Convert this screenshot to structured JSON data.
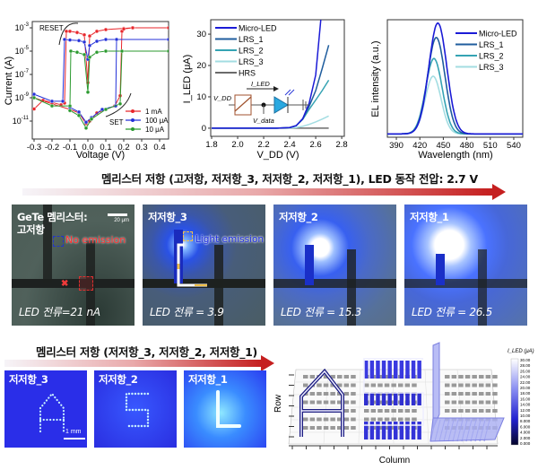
{
  "chart_data": [
    {
      "type": "line",
      "xlabel": "Voltage (V)",
      "ylabel": "Current (A)",
      "xlim": [
        -0.31,
        0.45
      ],
      "ylim_log10": [
        -12.54,
        -2.46
      ],
      "log_y": true,
      "xticks": [
        -0.3,
        -0.2,
        -0.1,
        0.0,
        0.1,
        0.2,
        0.3,
        0.4
      ],
      "xtick_labels": [
        "-0.3",
        "-0.2",
        "-0.1",
        "0.0",
        "0.1",
        "0.2",
        "0.3",
        "0.4"
      ],
      "yticks_exp": [
        -3,
        -5,
        -7,
        -9,
        -11
      ],
      "legend_position": "bottom-right",
      "annotations": [
        "RESET",
        "SET"
      ],
      "series": [
        {
          "name": "1 mA",
          "color": "#e8262b",
          "points": [
            [
              -0.3,
              1.1e-10
            ],
            [
              -0.25,
              6e-10
            ],
            [
              -0.2,
              4e-10
            ],
            [
              -0.15,
              2.5e-10
            ],
            [
              -0.13,
              3.5e-10
            ],
            [
              -0.12,
              0.0005
            ],
            [
              -0.1,
              0.0005
            ],
            [
              -0.06,
              0.0004
            ],
            [
              -0.02,
              0.00025
            ],
            [
              0,
              2e-08
            ],
            [
              0.01,
              0.0002
            ],
            [
              0.05,
              0.0005
            ],
            [
              0.1,
              0.0007
            ],
            [
              0.2,
              0.0009
            ],
            [
              0.25,
              0.001
            ],
            [
              0.45,
              0.001
            ],
            null,
            [
              -0.3,
              1e-09
            ],
            [
              -0.2,
              3e-10
            ],
            [
              -0.1,
              1e-10
            ],
            [
              -0.05,
              5e-11
            ],
            [
              -0.01,
              6e-12
            ],
            [
              0.01,
              1e-11
            ],
            [
              0.05,
              5e-11
            ],
            [
              0.1,
              1e-10
            ],
            [
              0.15,
              2e-10
            ],
            [
              0.18,
              1.5e-09
            ],
            [
              0.19,
              0.0005
            ],
            [
              0.2,
              0.0008
            ],
            [
              0.25,
              0.001
            ]
          ]
        },
        {
          "name": "100 μA",
          "color": "#2431d8",
          "points": [
            [
              -0.3,
              2e-09
            ],
            [
              -0.2,
              5e-10
            ],
            [
              -0.14,
              5e-10
            ],
            [
              -0.13,
              0.0001
            ],
            [
              -0.1,
              9e-05
            ],
            [
              -0.05,
              8e-05
            ],
            [
              -0.02,
              6e-05
            ],
            [
              0,
              2e-06
            ],
            [
              0.01,
              3e-05
            ],
            [
              0.05,
              7e-05
            ],
            [
              0.1,
              0.0001
            ],
            [
              0.45,
              0.0001
            ],
            null,
            [
              -0.1,
              1.5e-10
            ],
            [
              -0.05,
              6e-11
            ],
            [
              -0.01,
              8e-12
            ],
            [
              0.02,
              2e-11
            ],
            [
              0.08,
              1e-10
            ],
            [
              0.155,
              2e-10
            ],
            [
              0.16,
              0.0001
            ]
          ]
        },
        {
          "name": "10 μA",
          "color": "#2b9a2f",
          "points": [
            [
              -0.3,
              1e-09
            ],
            [
              -0.2,
              2e-10
            ],
            [
              -0.1,
              2e-10
            ],
            [
              -0.095,
              1e-05
            ],
            [
              -0.06,
              8e-06
            ],
            [
              -0.02,
              5e-06
            ],
            [
              0,
              3e-09
            ],
            [
              0.01,
              3e-06
            ],
            [
              0.05,
              8e-06
            ],
            [
              0.1,
              1e-05
            ],
            [
              0.45,
              1e-05
            ],
            null,
            [
              -0.1,
              8e-11
            ],
            [
              -0.05,
              3e-11
            ],
            [
              -0.01,
              2.5e-12
            ],
            [
              0.02,
              1.5e-11
            ],
            [
              0.1,
              1e-10
            ],
            [
              0.18,
              3e-10
            ],
            [
              0.19,
              1e-05
            ]
          ]
        }
      ]
    },
    {
      "type": "line",
      "xlabel": "V_DD (V)",
      "ylabel": "I_LED (μA)",
      "xlim": [
        1.793,
        2.82
      ],
      "ylim": [
        -2.6,
        34.6
      ],
      "xticks": [
        1.8,
        2.0,
        2.2,
        2.4,
        2.6,
        2.8
      ],
      "xtick_labels": [
        "1.8",
        "2.0",
        "2.2",
        "2.4",
        "2.6",
        "2.8"
      ],
      "yticks": [
        0,
        10,
        20,
        30
      ],
      "ytick_labels": [
        "0",
        "10",
        "20",
        "30"
      ],
      "legend_position": "top-left",
      "inset": {
        "current_label": "I_LED",
        "vdd_label": "V_DD",
        "vdata_label": "V_data"
      },
      "series": [
        {
          "name": "Micro-LED",
          "color": "#1b1bd6",
          "points": [
            [
              1.8,
              0
            ],
            [
              2.3,
              0
            ],
            [
              2.4,
              0.2
            ],
            [
              2.45,
              0.8
            ],
            [
              2.5,
              3
            ],
            [
              2.55,
              8
            ],
            [
              2.6,
              17
            ],
            [
              2.64,
              35
            ]
          ]
        },
        {
          "name": "LRS_1",
          "color": "#1f5d9e",
          "points": [
            [
              1.8,
              0
            ],
            [
              2.3,
              0
            ],
            [
              2.4,
              0.2
            ],
            [
              2.45,
              0.8
            ],
            [
              2.5,
              3
            ],
            [
              2.55,
              7
            ],
            [
              2.6,
              12
            ],
            [
              2.65,
              19
            ],
            [
              2.7,
              26.5
            ]
          ]
        },
        {
          "name": "LRS_2",
          "color": "#35a3b3",
          "points": [
            [
              1.8,
              0
            ],
            [
              2.3,
              0
            ],
            [
              2.4,
              0.2
            ],
            [
              2.45,
              0.8
            ],
            [
              2.5,
              2.8
            ],
            [
              2.55,
              6
            ],
            [
              2.6,
              9
            ],
            [
              2.65,
              12
            ],
            [
              2.7,
              15.3
            ]
          ]
        },
        {
          "name": "LRS_3",
          "color": "#a3dde2",
          "points": [
            [
              1.8,
              0
            ],
            [
              2.3,
              0
            ],
            [
              2.4,
              0.05
            ],
            [
              2.45,
              0.2
            ],
            [
              2.5,
              0.6
            ],
            [
              2.55,
              1.2
            ],
            [
              2.6,
              2
            ],
            [
              2.65,
              2.9
            ],
            [
              2.7,
              3.9
            ]
          ]
        },
        {
          "name": "HRS",
          "color": "#6b6b6b",
          "points": [
            [
              1.8,
              0
            ],
            [
              2.7,
              0
            ]
          ]
        }
      ]
    },
    {
      "type": "line",
      "xlabel": "Wavelength (nm)",
      "ylabel": "EL intensity (a.u.)",
      "xlim": [
        378.5,
        551.5
      ],
      "ylim": [
        -0.03,
        1.03
      ],
      "xticks": [
        390,
        420,
        450,
        480,
        510,
        540
      ],
      "xtick_labels": [
        "390",
        "420",
        "450",
        "480",
        "510",
        "540"
      ],
      "legend_position": "top-right",
      "series": [
        {
          "name": "Micro-LED",
          "color": "#1b1bd6",
          "peak_nm": 443,
          "relative_peak": 1.0,
          "fwhm_nm": 27
        },
        {
          "name": "LRS_1",
          "color": "#1f5d9e",
          "peak_nm": 441,
          "relative_peak": 0.87,
          "fwhm_nm": 26
        },
        {
          "name": "LRS_2",
          "color": "#35a3b3",
          "peak_nm": 438,
          "relative_peak": 0.68,
          "fwhm_nm": 25
        },
        {
          "name": "LRS_3",
          "color": "#a3dde2",
          "peak_nm": 437,
          "relative_peak": 0.52,
          "fwhm_nm": 24
        }
      ]
    }
  ],
  "middle": {
    "title": "멤리스터 저항 (고저항, 저저항_3, 저저항_2, 저저항_1), LED 동작 전압: 2.7 V",
    "panels": [
      {
        "label": "GeTe 멤리스터:\n고저항",
        "current": "LED 전류=21 nA",
        "scale_bar": "20 μm",
        "note": "No emission"
      },
      {
        "label": "저저항_3",
        "current": "LED 전류 = 3.9",
        "note": "Light emission"
      },
      {
        "label": "저저항_2",
        "current": "LED 전류 = 15.3"
      },
      {
        "label": "저저항_1",
        "current": "LED 전류 = 26.5"
      }
    ]
  },
  "bottom": {
    "title": "멤리스터 저항 (저저항_3, 저저항_2, 저저항_1)",
    "panels": [
      {
        "label": "저저항_3",
        "letter": "A",
        "scale_bar": "1 mm"
      },
      {
        "label": "저저항_2",
        "letter": "S"
      },
      {
        "label": "저저항_1",
        "letter": "L"
      }
    ],
    "map3d": {
      "xlabel": "Column",
      "ylabel": "Row",
      "colorbar_label": "I_LED (μA)",
      "colorbar_ticks": [
        "30.00",
        "28.00",
        "26.00",
        "24.00",
        "22.00",
        "20.00",
        "18.00",
        "16.00",
        "14.00",
        "12.00",
        "10.00",
        "8.000",
        "6.000",
        "4.000",
        "2.000",
        "0.000"
      ]
    }
  }
}
